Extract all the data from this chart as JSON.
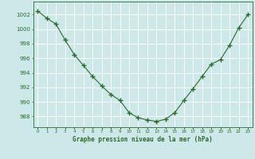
{
  "x": [
    0,
    1,
    2,
    3,
    4,
    5,
    6,
    7,
    8,
    9,
    10,
    11,
    12,
    13,
    14,
    15,
    16,
    17,
    18,
    19,
    20,
    21,
    22,
    23
  ],
  "y": [
    1002.5,
    1001.5,
    1000.7,
    998.5,
    996.5,
    995.0,
    993.5,
    992.2,
    991.0,
    990.2,
    988.5,
    987.8,
    987.5,
    987.3,
    987.6,
    988.5,
    990.2,
    991.8,
    993.5,
    995.2,
    995.8,
    997.8,
    1000.2,
    1002.0
  ],
  "line_color": "#2d6a2d",
  "marker": "+",
  "bg_color": "#cce8e8",
  "grid_color": "#ffffff",
  "label": "Graphe pression niveau de la mer (hPa)",
  "yticks": [
    988,
    990,
    992,
    994,
    996,
    998,
    1000,
    1002
  ],
  "ylim": [
    986.5,
    1003.8
  ],
  "xlim": [
    -0.5,
    23.5
  ]
}
